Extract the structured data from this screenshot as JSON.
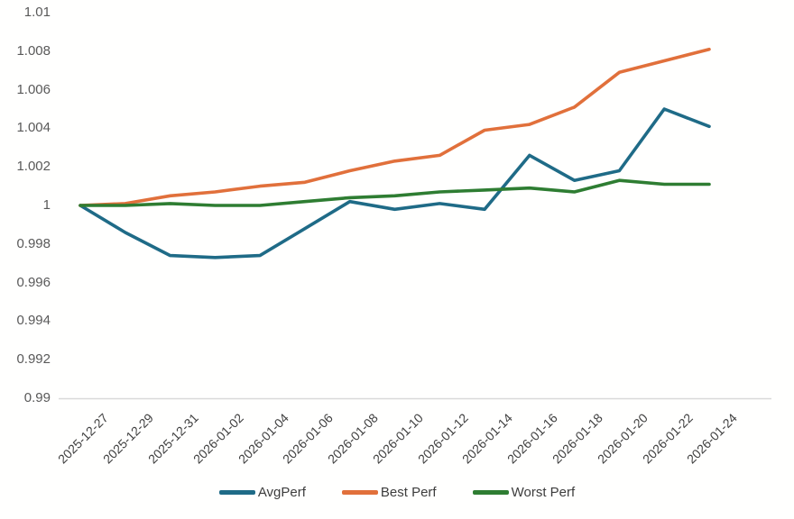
{
  "chart_data": {
    "type": "line",
    "x": [
      "2025-12-27",
      "2025-12-29",
      "2025-12-31",
      "2026-01-02",
      "2026-01-04",
      "2026-01-06",
      "2026-01-08",
      "2026-01-10",
      "2026-01-12",
      "2026-01-14",
      "2026-01-16",
      "2026-01-18",
      "2026-01-20",
      "2026-01-22",
      "2026-01-24"
    ],
    "series": [
      {
        "name": "AvgPerf",
        "color": "#1f6b87",
        "values": [
          1.0,
          0.9986,
          0.9974,
          0.9973,
          0.9974,
          0.9988,
          1.0002,
          0.9998,
          1.0001,
          0.9998,
          1.0026,
          1.0013,
          1.0018,
          1.005,
          1.0041
        ]
      },
      {
        "name": "Best Perf",
        "color": "#e1703b",
        "values": [
          1.0,
          1.0001,
          1.0005,
          1.0007,
          1.001,
          1.0012,
          1.0018,
          1.0023,
          1.0026,
          1.0039,
          1.0042,
          1.0051,
          1.0069,
          1.0075,
          1.0081
        ]
      },
      {
        "name": "Worst Perf",
        "color": "#2e7d32",
        "values": [
          1.0,
          1.0,
          1.0001,
          1.0,
          1.0,
          1.0002,
          1.0004,
          1.0005,
          1.0007,
          1.0008,
          1.0009,
          1.0007,
          1.0013,
          1.0011,
          1.0011
        ]
      }
    ],
    "xlabel": "",
    "ylabel": "",
    "y_axis": {
      "min": 0.99,
      "max": 1.01,
      "tick_step": 0.002,
      "tick_labels": [
        "0.99",
        "0.992",
        "0.994",
        "0.996",
        "0.998",
        "1",
        "1.002",
        "1.004",
        "1.006",
        "1.008",
        "1.01"
      ]
    },
    "grid": false,
    "legend_position": "bottom",
    "colors": {
      "axis_line": "#d9d9d9",
      "y_tick_text": "#595959",
      "x_tick_text": "#3f3f3f",
      "legend_text": "#3d3d3d",
      "background": "#ffffff"
    }
  }
}
